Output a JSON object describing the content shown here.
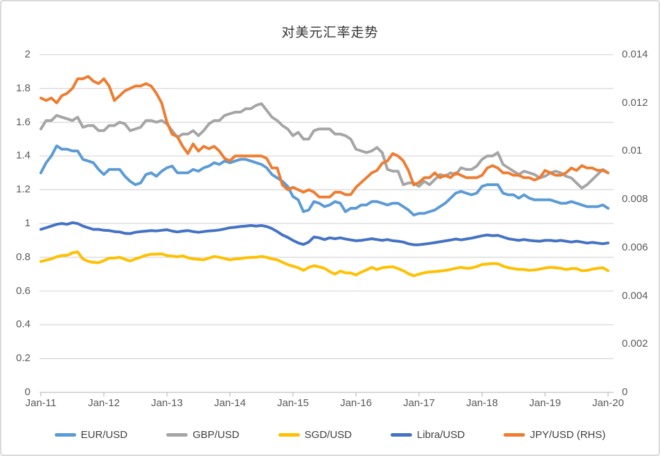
{
  "chart_data": {
    "type": "line",
    "title": "对美元汇率走势",
    "grid": "horizontal",
    "legend_position": "bottom",
    "x_tick_labels": [
      "Jan-11",
      "Jan-12",
      "Jan-13",
      "Jan-14",
      "Jan-15",
      "Jan-16",
      "Jan-17",
      "Jan-18",
      "Jan-19",
      "Jan-20"
    ],
    "points_per_year": 12,
    "left_axis": {
      "min": 0,
      "max": 2,
      "step": 0.2,
      "tick_labels": [
        "0",
        "0.2",
        "0.4",
        "0.6",
        "0.8",
        "1",
        "1.2",
        "1.4",
        "1.6",
        "1.8",
        "2"
      ]
    },
    "right_axis": {
      "min": 0,
      "max": 0.014,
      "step": 0.002,
      "tick_labels": [
        "0",
        "0.002",
        "0.004",
        "0.006",
        "0.008",
        "0.01",
        "0.012",
        "0.014"
      ]
    },
    "colors": {
      "grid": "#d9d9d9",
      "axis_line": "#bfbfbf",
      "tick_text": "#595959",
      "legend_text": "#404040",
      "title_text": "#333333"
    },
    "series": [
      {
        "name": "EUR/USD",
        "color": "#5B9BD5",
        "axis": "left",
        "values": [
          1.3,
          1.36,
          1.4,
          1.46,
          1.44,
          1.44,
          1.43,
          1.43,
          1.38,
          1.37,
          1.36,
          1.32,
          1.29,
          1.32,
          1.32,
          1.32,
          1.28,
          1.25,
          1.23,
          1.24,
          1.29,
          1.3,
          1.28,
          1.31,
          1.33,
          1.34,
          1.3,
          1.3,
          1.3,
          1.32,
          1.31,
          1.33,
          1.34,
          1.36,
          1.35,
          1.37,
          1.36,
          1.37,
          1.38,
          1.38,
          1.37,
          1.36,
          1.35,
          1.33,
          1.29,
          1.27,
          1.25,
          1.22,
          1.16,
          1.14,
          1.07,
          1.08,
          1.13,
          1.12,
          1.1,
          1.11,
          1.13,
          1.12,
          1.07,
          1.09,
          1.09,
          1.11,
          1.11,
          1.13,
          1.13,
          1.12,
          1.11,
          1.12,
          1.12,
          1.1,
          1.08,
          1.05,
          1.06,
          1.06,
          1.07,
          1.08,
          1.1,
          1.12,
          1.15,
          1.18,
          1.19,
          1.18,
          1.17,
          1.18,
          1.22,
          1.23,
          1.23,
          1.23,
          1.18,
          1.17,
          1.17,
          1.15,
          1.17,
          1.15,
          1.14,
          1.14,
          1.14,
          1.14,
          1.13,
          1.12,
          1.12,
          1.13,
          1.12,
          1.11,
          1.1,
          1.1,
          1.1,
          1.11,
          1.09
        ]
      },
      {
        "name": "GBP/USD",
        "color": "#A5A5A5",
        "axis": "left",
        "values": [
          1.56,
          1.61,
          1.61,
          1.64,
          1.63,
          1.62,
          1.61,
          1.63,
          1.57,
          1.58,
          1.58,
          1.55,
          1.55,
          1.58,
          1.58,
          1.6,
          1.59,
          1.55,
          1.56,
          1.57,
          1.61,
          1.61,
          1.6,
          1.61,
          1.59,
          1.55,
          1.51,
          1.53,
          1.53,
          1.55,
          1.52,
          1.55,
          1.59,
          1.61,
          1.61,
          1.64,
          1.65,
          1.66,
          1.66,
          1.68,
          1.68,
          1.7,
          1.71,
          1.67,
          1.63,
          1.61,
          1.58,
          1.56,
          1.52,
          1.54,
          1.5,
          1.5,
          1.55,
          1.56,
          1.56,
          1.56,
          1.53,
          1.53,
          1.52,
          1.5,
          1.44,
          1.43,
          1.42,
          1.43,
          1.45,
          1.42,
          1.32,
          1.31,
          1.31,
          1.23,
          1.24,
          1.24,
          1.22,
          1.25,
          1.23,
          1.26,
          1.29,
          1.28,
          1.3,
          1.29,
          1.33,
          1.32,
          1.32,
          1.34,
          1.38,
          1.4,
          1.4,
          1.42,
          1.35,
          1.33,
          1.31,
          1.29,
          1.31,
          1.3,
          1.29,
          1.27,
          1.28,
          1.3,
          1.31,
          1.3,
          1.28,
          1.27,
          1.24,
          1.21,
          1.23,
          1.26,
          1.29,
          1.32,
          1.3
        ]
      },
      {
        "name": "SGD/USD",
        "color": "#FFC000",
        "axis": "left",
        "values": [
          0.775,
          0.783,
          0.79,
          0.803,
          0.81,
          0.812,
          0.826,
          0.832,
          0.79,
          0.776,
          0.77,
          0.768,
          0.78,
          0.795,
          0.795,
          0.8,
          0.788,
          0.778,
          0.79,
          0.8,
          0.812,
          0.818,
          0.818,
          0.82,
          0.81,
          0.807,
          0.803,
          0.808,
          0.797,
          0.79,
          0.788,
          0.785,
          0.795,
          0.805,
          0.8,
          0.792,
          0.785,
          0.79,
          0.792,
          0.797,
          0.799,
          0.8,
          0.805,
          0.8,
          0.79,
          0.785,
          0.77,
          0.757,
          0.747,
          0.738,
          0.722,
          0.74,
          0.75,
          0.743,
          0.735,
          0.715,
          0.7,
          0.718,
          0.708,
          0.707,
          0.695,
          0.712,
          0.725,
          0.74,
          0.727,
          0.738,
          0.742,
          0.744,
          0.733,
          0.72,
          0.703,
          0.69,
          0.7,
          0.708,
          0.713,
          0.715,
          0.718,
          0.722,
          0.728,
          0.735,
          0.74,
          0.735,
          0.737,
          0.745,
          0.757,
          0.76,
          0.763,
          0.762,
          0.748,
          0.738,
          0.733,
          0.728,
          0.728,
          0.722,
          0.725,
          0.73,
          0.737,
          0.74,
          0.738,
          0.735,
          0.727,
          0.733,
          0.733,
          0.72,
          0.722,
          0.73,
          0.734,
          0.738,
          0.72
        ]
      },
      {
        "name": "Libra/USD",
        "color": "#4472C4",
        "axis": "left",
        "values": [
          0.965,
          0.975,
          0.985,
          0.995,
          1.0,
          0.995,
          1.005,
          1.0,
          0.985,
          0.975,
          0.965,
          0.965,
          0.96,
          0.958,
          0.952,
          0.95,
          0.942,
          0.94,
          0.948,
          0.952,
          0.955,
          0.958,
          0.956,
          0.96,
          0.963,
          0.955,
          0.95,
          0.955,
          0.958,
          0.952,
          0.948,
          0.952,
          0.956,
          0.958,
          0.962,
          0.968,
          0.975,
          0.978,
          0.982,
          0.985,
          0.988,
          0.985,
          0.988,
          0.982,
          0.97,
          0.952,
          0.932,
          0.918,
          0.9,
          0.885,
          0.876,
          0.89,
          0.92,
          0.915,
          0.905,
          0.915,
          0.91,
          0.915,
          0.908,
          0.903,
          0.898,
          0.9,
          0.905,
          0.91,
          0.905,
          0.9,
          0.905,
          0.898,
          0.895,
          0.89,
          0.88,
          0.874,
          0.874,
          0.878,
          0.882,
          0.887,
          0.892,
          0.897,
          0.902,
          0.908,
          0.903,
          0.908,
          0.913,
          0.92,
          0.927,
          0.932,
          0.928,
          0.93,
          0.92,
          0.91,
          0.905,
          0.9,
          0.905,
          0.9,
          0.897,
          0.895,
          0.9,
          0.9,
          0.896,
          0.9,
          0.895,
          0.89,
          0.895,
          0.89,
          0.884,
          0.888,
          0.884,
          0.88,
          0.885
        ]
      },
      {
        "name": "JPY/USD (RHS)",
        "color": "#ED7D31",
        "axis": "right",
        "values": [
          0.0122,
          0.0121,
          0.0122,
          0.012,
          0.0123,
          0.0124,
          0.0126,
          0.013,
          0.013,
          0.0131,
          0.0129,
          0.0128,
          0.013,
          0.0127,
          0.0121,
          0.0123,
          0.0125,
          0.0126,
          0.0127,
          0.0127,
          0.0128,
          0.0127,
          0.0124,
          0.012,
          0.0112,
          0.0107,
          0.0106,
          0.0102,
          0.0099,
          0.0103,
          0.01,
          0.0102,
          0.0101,
          0.0102,
          0.01,
          0.0097,
          0.0096,
          0.0098,
          0.0098,
          0.0098,
          0.0098,
          0.0098,
          0.0098,
          0.0097,
          0.0093,
          0.0093,
          0.0086,
          0.0084,
          0.0085,
          0.0084,
          0.0083,
          0.0084,
          0.0083,
          0.0081,
          0.0081,
          0.0081,
          0.0083,
          0.0083,
          0.0082,
          0.0082,
          0.0085,
          0.0087,
          0.0089,
          0.0091,
          0.0092,
          0.0095,
          0.0096,
          0.0099,
          0.0098,
          0.0096,
          0.0092,
          0.0086,
          0.0087,
          0.0089,
          0.0089,
          0.0091,
          0.0089,
          0.009,
          0.0089,
          0.0091,
          0.009,
          0.0089,
          0.0089,
          0.0089,
          0.009,
          0.0093,
          0.0094,
          0.0093,
          0.0091,
          0.0091,
          0.009,
          0.009,
          0.0089,
          0.0089,
          0.0088,
          0.0089,
          0.0092,
          0.0091,
          0.009,
          0.009,
          0.0091,
          0.0093,
          0.0092,
          0.0094,
          0.0093,
          0.0093,
          0.0092,
          0.0092,
          0.0091
        ]
      }
    ]
  }
}
